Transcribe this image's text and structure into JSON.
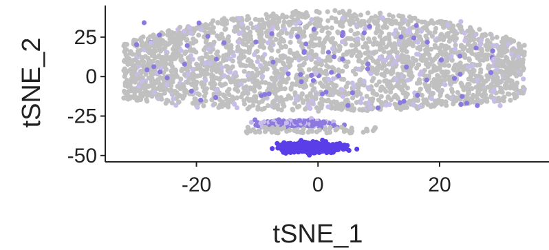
{
  "chart_data": {
    "type": "scatter",
    "title": "",
    "xlabel": "tSNE_1",
    "ylabel": "tSNE_2",
    "xlim": [
      -35,
      38
    ],
    "ylim": [
      -54,
      45
    ],
    "xticks": [
      -20,
      0,
      20
    ],
    "yticks": [
      -50,
      -25,
      0,
      25
    ],
    "grid": false,
    "legend": "none",
    "colors": {
      "background_points": "#c0c0c0",
      "low": "#c8bde8",
      "mid": "#8c79e0",
      "high": "#5a3fe8"
    },
    "regions": [
      {
        "kind": "main-cloud",
        "x_range": [
          -33,
          35
        ],
        "y_range": [
          -25,
          45
        ],
        "color": "#c0c0c0"
      },
      {
        "kind": "lower-cluster",
        "x_range": [
          -12,
          10
        ],
        "y_range": [
          -52,
          -20
        ],
        "color": "#5a3fe8"
      }
    ]
  }
}
